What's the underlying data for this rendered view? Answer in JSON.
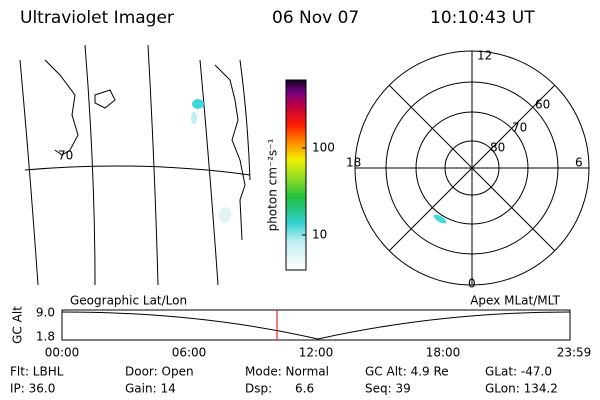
{
  "header": {
    "title": "Ultraviolet Imager",
    "date": "06 Nov 07",
    "time": "10:10:43 UT"
  },
  "map": {
    "lat_label": "70"
  },
  "colorbar": {
    "label": "photon cm⁻²s⁻¹",
    "ticks": [
      "100",
      "10"
    ]
  },
  "polar": {
    "mlt_labels": [
      "12",
      "18",
      "6",
      "0"
    ],
    "lat_labels": [
      "60",
      "70",
      "80"
    ]
  },
  "altitude": {
    "axis_label": "GC Alt",
    "yticks": [
      "9.0",
      "1.8"
    ],
    "left_label": "Geographic Lat/Lon",
    "right_label": "Apex MLat/MLT",
    "xticks": [
      "00:00",
      "06:00",
      "12:00",
      "18:00",
      "23:59"
    ]
  },
  "footer": {
    "rows": [
      [
        "Flt: LBHL",
        "Door: Open",
        "Mode: Normal",
        "GC Alt: 4.9 Re",
        "GLat: -47.0"
      ],
      [
        "IP: 36.0",
        "Gain: 14",
        "Dsp:      6.6",
        "Seq: 39",
        "GLon: 134.2"
      ]
    ]
  }
}
